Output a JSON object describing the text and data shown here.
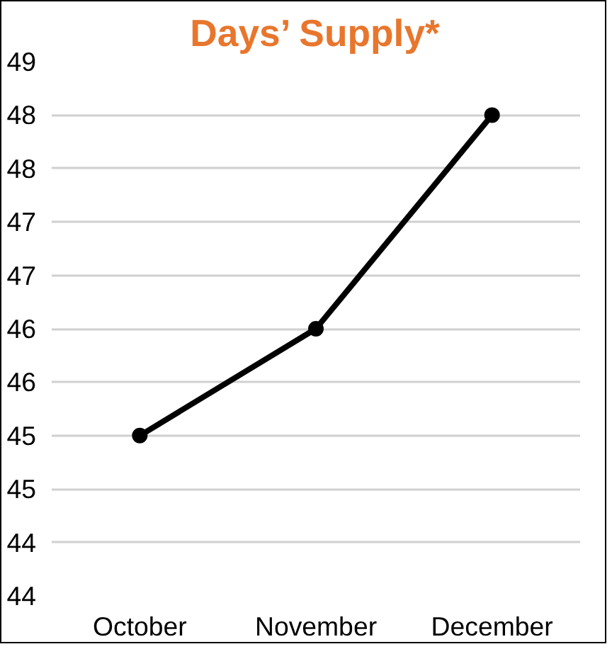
{
  "chart_data": {
    "type": "line",
    "title": "Days’ Supply*",
    "categories": [
      "October",
      "November",
      "December"
    ],
    "series": [
      {
        "color": "#000000",
        "values": [
          45,
          46,
          48
        ]
      }
    ],
    "ylim": [
      43.5,
      48.5
    ],
    "yticks": [
      {
        "value": 43.5,
        "label": "44"
      },
      {
        "value": 44,
        "label": "44"
      },
      {
        "value": 44.5,
        "label": "45"
      },
      {
        "value": 45,
        "label": "45"
      },
      {
        "value": 45.5,
        "label": "46"
      },
      {
        "value": 46,
        "label": "46"
      },
      {
        "value": 46.5,
        "label": "47"
      },
      {
        "value": 47,
        "label": "47"
      },
      {
        "value": 47.5,
        "label": "48"
      },
      {
        "value": 48,
        "label": "48"
      },
      {
        "value": 48.5,
        "label": "49"
      }
    ],
    "grid": "y",
    "marker": "circle",
    "line_style": "solid"
  }
}
